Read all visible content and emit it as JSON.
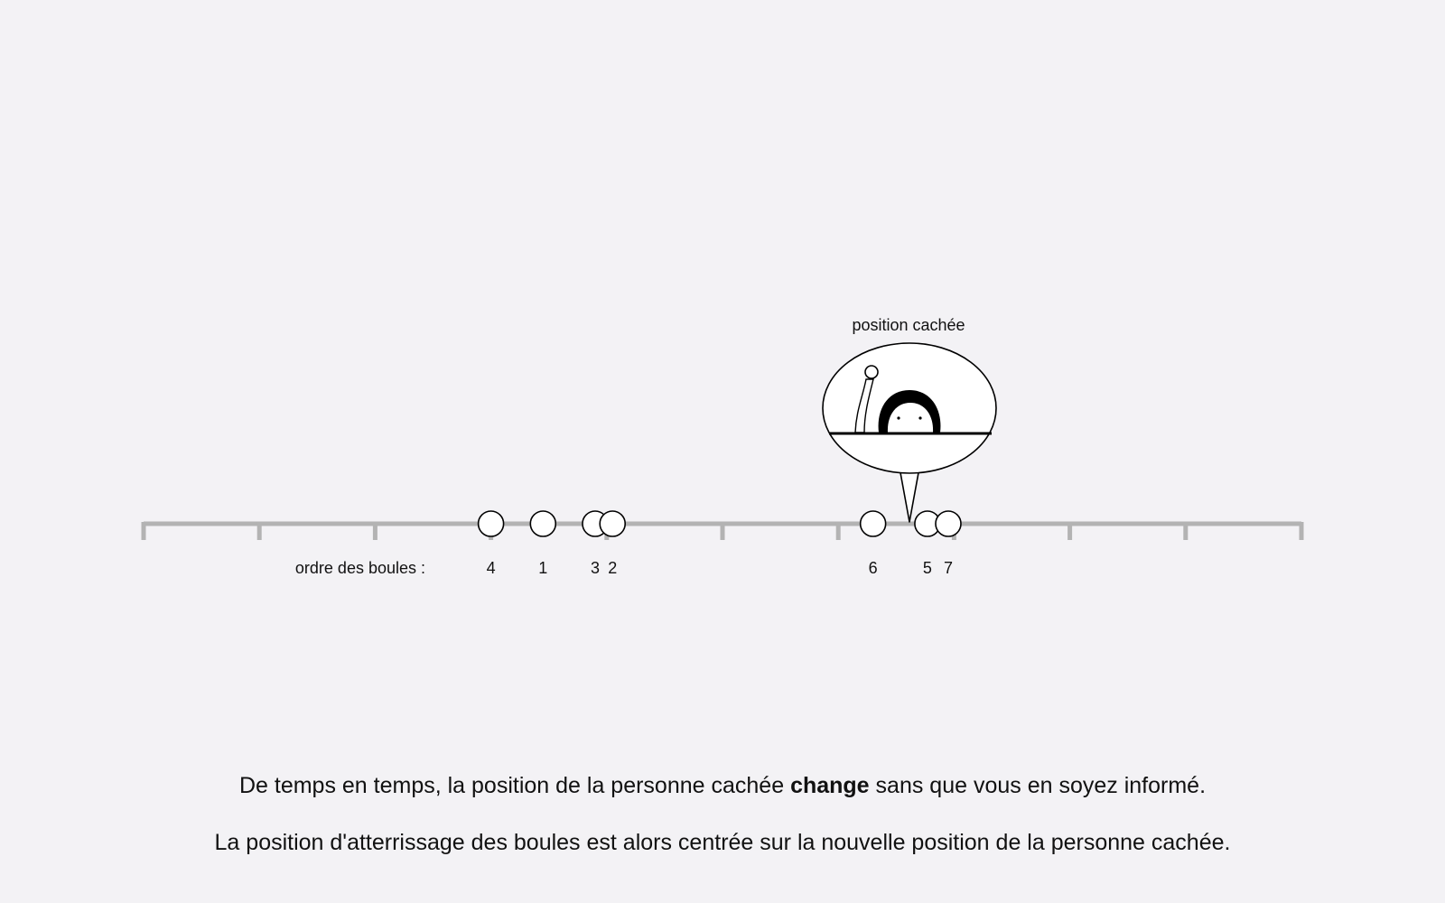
{
  "bubble": {
    "label": "position cachée"
  },
  "order_label": "ordre des boules :",
  "balls": [
    {
      "label": "4",
      "pos": 3.0
    },
    {
      "label": "1",
      "pos": 3.45
    },
    {
      "label": "3",
      "pos": 3.9
    },
    {
      "label": "2",
      "pos": 4.05
    },
    {
      "label": "6",
      "pos": 6.3
    },
    {
      "label": "5",
      "pos": 6.77
    },
    {
      "label": "7",
      "pos": 6.95
    }
  ],
  "hidden_position": 6.65,
  "axis": {
    "min": 0,
    "max": 10,
    "ticks": [
      0,
      1,
      2,
      3,
      4,
      5,
      6,
      7,
      8,
      9,
      10
    ]
  },
  "colors": {
    "background": "#f3f2f5",
    "axis": "#b3b3b3",
    "ball_fill": "#ffffff",
    "ball_stroke": "#000000"
  },
  "instructions": {
    "line1_before": "De temps en temps, la position de la personne cachée ",
    "line1_bold": "change",
    "line1_after": " sans que vous en soyez informé.",
    "line2": "La position d'atterrissage des boules est alors centrée sur la nouvelle position de la personne cachée."
  }
}
